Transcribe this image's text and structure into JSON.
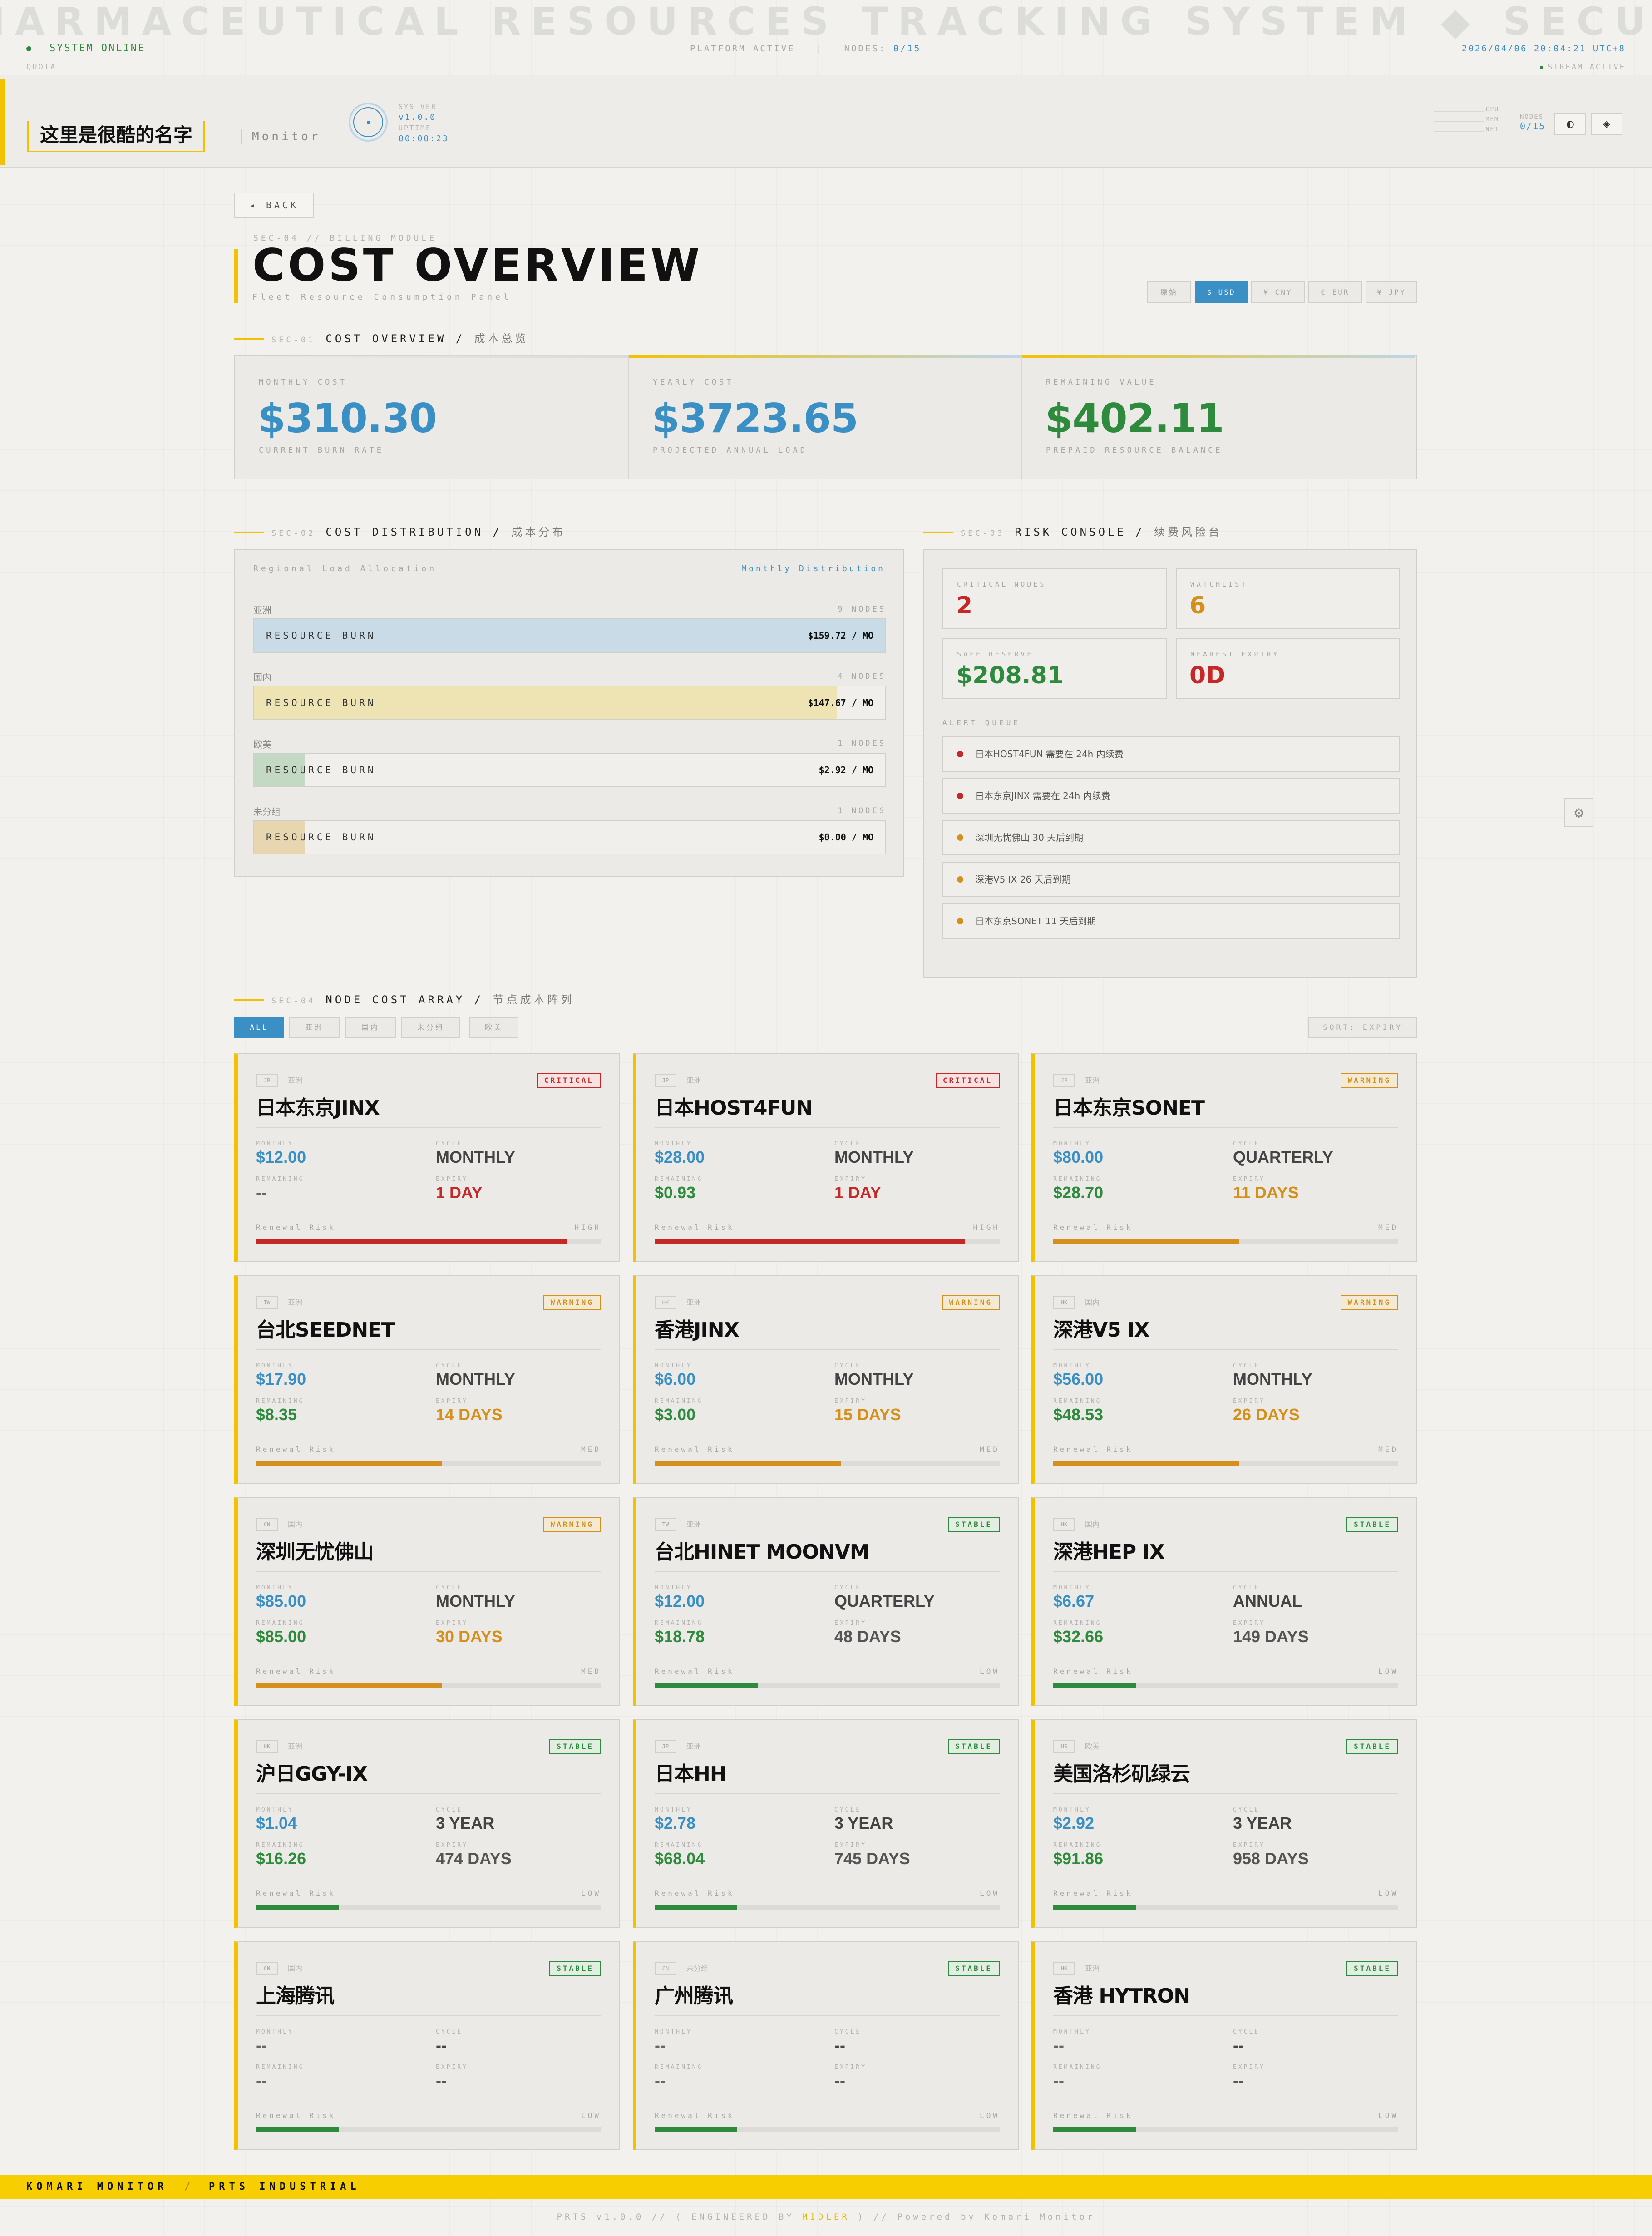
{
  "marquee": "IARMACEUTICAL RESOURCES TRACKING SYSTEM ◆ SECUR",
  "status": {
    "online": "SYSTEM ONLINE",
    "platform": "PLATFORM ACTIVE",
    "nodes_label": "NODES:",
    "nodes_value": "0/15",
    "time": "2026/04/06 20:04:21 UTC+8",
    "quota": "QUOTA",
    "stream": "STREAM ACTIVE"
  },
  "header": {
    "name": "这里是很酷的名字",
    "mode": "Monitor",
    "sys_ver_label": "SYS VER",
    "sys_ver": "v1.0.0",
    "uptime_label": "UPTIME",
    "uptime": "00:00:23",
    "meters": [
      "CPU",
      "MEM",
      "NET"
    ],
    "nodes_label": "NODES",
    "nodes_value": "0/15",
    "theme_icon": "◐",
    "settings_icon": "◈"
  },
  "page": {
    "back": "◂ BACK",
    "secid": "SEC-04 // BILLING MODULE",
    "title": "COST OVERVIEW",
    "subtitle": "Fleet Resource Consumption Panel",
    "currencies": [
      "原始",
      "$ USD",
      "¥ CNY",
      "€ EUR",
      "¥ JPY"
    ]
  },
  "sections": {
    "s1": {
      "id": "SEC-01",
      "title": "COST OVERVIEW",
      "zh": "成本总览"
    },
    "s2": {
      "id": "SEC-02",
      "title": "COST DISTRIBUTION",
      "zh": "成本分布"
    },
    "s3": {
      "id": "SEC-03",
      "title": "RISK CONSOLE",
      "zh": "续费风险台"
    },
    "s4": {
      "id": "SEC-04",
      "title": "NODE COST ARRAY",
      "zh": "节点成本阵列"
    }
  },
  "stats": [
    {
      "label": "MONTHLY COST",
      "value": "$310.30",
      "sub": "CURRENT BURN RATE",
      "color": "#3a8fc4"
    },
    {
      "label": "YEARLY COST",
      "value": "$3723.65",
      "sub": "PROJECTED ANNUAL LOAD",
      "color": "#3a8fc4"
    },
    {
      "label": "REMAINING VALUE",
      "value": "$402.11",
      "sub": "PREPAID RESOURCE BALANCE",
      "color": "#2e8b3d"
    }
  ],
  "distribution": {
    "header_left": "Regional Load Allocation",
    "header_right": "Monthly Distribution",
    "rows": [
      {
        "region": "亚洲",
        "count": "9 NODES",
        "label": "RESOURCE BURN",
        "value": "$159.72 / MO",
        "share": 1.0,
        "color": "#c9dbe6"
      },
      {
        "region": "国内",
        "count": "4 NODES",
        "label": "RESOURCE BURN",
        "value": "$147.67 / MO",
        "share": 0.924,
        "color": "#ede3b3"
      },
      {
        "region": "欧美",
        "count": "1 NODES",
        "label": "RESOURCE BURN",
        "value": "$2.92 / MO",
        "share": 0.08,
        "color": "#c3d9c4"
      },
      {
        "region": "未分组",
        "count": "1 NODES",
        "label": "RESOURCE BURN",
        "value": "$0.00 / MO",
        "share": 0.08,
        "color": "#e8d6b1"
      }
    ]
  },
  "risk": {
    "boxes": [
      {
        "label": "CRITICAL NODES",
        "value": "2",
        "color": "#c62828"
      },
      {
        "label": "WATCHLIST",
        "value": "6",
        "color": "#d4901a"
      },
      {
        "label": "SAFE RESERVE",
        "value": "$208.81",
        "color": "#2e8b3d"
      },
      {
        "label": "NEAREST EXPIRY",
        "value": "0D",
        "color": "#c62828"
      }
    ],
    "queue_label": "ALERT QUEUE",
    "alerts": [
      {
        "text": "日本HOST4FUN 需要在 24h 内续费",
        "color": "#c62828"
      },
      {
        "text": "日本东京JINX 需要在 24h 内续费",
        "color": "#c62828"
      },
      {
        "text": "深圳无忧佛山 30 天后到期",
        "color": "#d4901a"
      },
      {
        "text": "深港V5 IX 26 天后到期",
        "color": "#d4901a"
      },
      {
        "text": "日本东京SONET 11 天后到期",
        "color": "#d4901a"
      }
    ]
  },
  "filters": [
    "ALL",
    "亚洲",
    "国内",
    "未分组",
    "欧美"
  ],
  "sort": "SORT: EXPIRY",
  "field_labels": {
    "monthly": "MONTHLY",
    "cycle": "CYCLE",
    "remaining": "REMAINING",
    "expiry": "EXPIRY",
    "risk": "Renewal Risk"
  },
  "nodes": [
    {
      "cc": "JP",
      "region": "亚洲",
      "name": "日本东京JINX",
      "badge": "CRITICAL",
      "monthly": "$12.00",
      "cycle": "MONTHLY",
      "remaining": "--",
      "expiry": "1 DAY",
      "risk": "HIGH",
      "risk_level": 0.9,
      "sev": "critical"
    },
    {
      "cc": "JP",
      "region": "亚洲",
      "name": "日本HOST4FUN",
      "badge": "CRITICAL",
      "monthly": "$28.00",
      "cycle": "MONTHLY",
      "remaining": "$0.93",
      "expiry": "1 DAY",
      "risk": "HIGH",
      "risk_level": 0.9,
      "sev": "critical"
    },
    {
      "cc": "JP",
      "region": "亚洲",
      "name": "日本东京SONET",
      "badge": "WARNING",
      "monthly": "$80.00",
      "cycle": "QUARTERLY",
      "remaining": "$28.70",
      "expiry": "11 DAYS",
      "risk": "MED",
      "risk_level": 0.54,
      "sev": "warning"
    },
    {
      "cc": "TW",
      "region": "亚洲",
      "name": "台北SEEDNET",
      "badge": "WARNING",
      "monthly": "$17.90",
      "cycle": "MONTHLY",
      "remaining": "$8.35",
      "expiry": "14 DAYS",
      "risk": "MED",
      "risk_level": 0.54,
      "sev": "warning"
    },
    {
      "cc": "HK",
      "region": "亚洲",
      "name": "香港JINX",
      "badge": "WARNING",
      "monthly": "$6.00",
      "cycle": "MONTHLY",
      "remaining": "$3.00",
      "expiry": "15 DAYS",
      "risk": "MED",
      "risk_level": 0.54,
      "sev": "warning"
    },
    {
      "cc": "HK",
      "region": "国内",
      "name": "深港V5 IX",
      "badge": "WARNING",
      "monthly": "$56.00",
      "cycle": "MONTHLY",
      "remaining": "$48.53",
      "expiry": "26 DAYS",
      "risk": "MED",
      "risk_level": 0.54,
      "sev": "warning"
    },
    {
      "cc": "CN",
      "region": "国内",
      "name": "深圳无忧佛山",
      "badge": "WARNING",
      "monthly": "$85.00",
      "cycle": "MONTHLY",
      "remaining": "$85.00",
      "expiry": "30 DAYS",
      "risk": "MED",
      "risk_level": 0.54,
      "sev": "warning"
    },
    {
      "cc": "TW",
      "region": "亚洲",
      "name": "台北HINET MOONVM",
      "badge": "STABLE",
      "monthly": "$12.00",
      "cycle": "QUARTERLY",
      "remaining": "$18.78",
      "expiry": "48 DAYS",
      "risk": "LOW",
      "risk_level": 0.3,
      "sev": "stable"
    },
    {
      "cc": "HK",
      "region": "国内",
      "name": "深港HEP IX",
      "badge": "STABLE",
      "monthly": "$6.67",
      "cycle": "ANNUAL",
      "remaining": "$32.66",
      "expiry": "149 DAYS",
      "risk": "LOW",
      "risk_level": 0.24,
      "sev": "stable"
    },
    {
      "cc": "HK",
      "region": "亚洲",
      "name": "沪日GGY-IX",
      "badge": "STABLE",
      "monthly": "$1.04",
      "cycle": "3 YEAR",
      "remaining": "$16.26",
      "expiry": "474 DAYS",
      "risk": "LOW",
      "risk_level": 0.24,
      "sev": "stable"
    },
    {
      "cc": "JP",
      "region": "亚洲",
      "name": "日本HH",
      "badge": "STABLE",
      "monthly": "$2.78",
      "cycle": "3 YEAR",
      "remaining": "$68.04",
      "expiry": "745 DAYS",
      "risk": "LOW",
      "risk_level": 0.24,
      "sev": "stable"
    },
    {
      "cc": "US",
      "region": "欧美",
      "name": "美国洛杉矶绿云",
      "badge": "STABLE",
      "monthly": "$2.92",
      "cycle": "3 YEAR",
      "remaining": "$91.86",
      "expiry": "958 DAYS",
      "risk": "LOW",
      "risk_level": 0.24,
      "sev": "stable"
    },
    {
      "cc": "CN",
      "region": "国内",
      "name": "上海腾讯",
      "badge": "STABLE",
      "monthly": "--",
      "cycle": "--",
      "remaining": "--",
      "expiry": "--",
      "risk": "LOW",
      "risk_level": 0.24,
      "sev": "none"
    },
    {
      "cc": "CN",
      "region": "未分组",
      "name": "广州腾讯",
      "badge": "STABLE",
      "monthly": "--",
      "cycle": "--",
      "remaining": "--",
      "expiry": "--",
      "risk": "LOW",
      "risk_level": 0.24,
      "sev": "none"
    },
    {
      "cc": "HK",
      "region": "亚洲",
      "name": "香港 HYTRON",
      "badge": "STABLE",
      "monthly": "--",
      "cycle": "--",
      "remaining": "--",
      "expiry": "--",
      "risk": "LOW",
      "risk_level": 0.24,
      "sev": "none"
    }
  ],
  "footer": {
    "left": "KOMARI MONITOR",
    "sep": "/",
    "right": "PRTS INDUSTRIAL",
    "credit_a": "PRTS v1.0.0  //  ( ENGINEERED BY",
    "credit_b": "MIDLER",
    "credit_c": ")  //  Powered by Komari Monitor"
  }
}
